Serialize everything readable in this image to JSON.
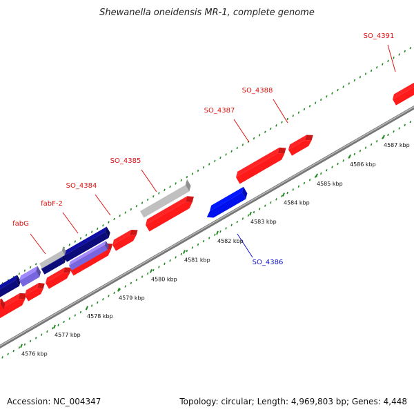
{
  "title": "Shewanella oneidensis MR-1, complete genome",
  "footer": {
    "accession": "Accession: NC_004347",
    "summary": "Topology: circular; Length: 4,969,803 bp; Genes: 4,448"
  },
  "colors": {
    "forward_cds": "#ff1a1a",
    "reverse_cds": "#0011ee",
    "dark_feature": "#0b0b7a",
    "purple_feature": "#7766dd",
    "grey_feature": "#c0c0c0",
    "backbone": "#888888",
    "tick": "#228822",
    "label_forward": "#dd1111",
    "label_reverse": "#1111cc"
  },
  "ticks": [
    "4576 kbp",
    "4577 kbp",
    "4578 kbp",
    "4579 kbp",
    "4580 kbp",
    "4581 kbp",
    "4582 kbp",
    "4583 kbp",
    "4584 kbp",
    "4585 kbp",
    "4586 kbp",
    "4587 kbp"
  ],
  "gene_labels": [
    {
      "name": "fabG",
      "strand": "forward"
    },
    {
      "name": "fabF-2",
      "strand": "forward"
    },
    {
      "name": "SO_4384",
      "strand": "forward"
    },
    {
      "name": "SO_4385",
      "strand": "forward"
    },
    {
      "name": "SO_4387",
      "strand": "forward"
    },
    {
      "name": "SO_4388",
      "strand": "forward"
    },
    {
      "name": "SO_4391",
      "strand": "forward"
    },
    {
      "name": "SO_4386",
      "strand": "reverse"
    }
  ]
}
